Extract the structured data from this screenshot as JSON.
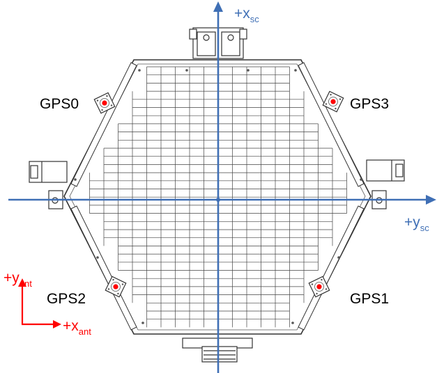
{
  "gps_antennas": [
    {
      "label": "GPS0"
    },
    {
      "label": "GPS3"
    },
    {
      "label": "GPS2"
    },
    {
      "label": "GPS1"
    }
  ],
  "spacecraft_axes": {
    "x": {
      "main": "+x",
      "sub": "sc"
    },
    "y": {
      "main": "+y",
      "sub": "sc"
    }
  },
  "antenna_axes": {
    "x": {
      "main": "+x",
      "sub": "ant"
    },
    "y": {
      "main": "+y",
      "sub": "ant"
    }
  },
  "colors": {
    "axis_blue": "#3f6fb5",
    "antenna_red": "#ff0000",
    "drawing_line": "#333333"
  }
}
